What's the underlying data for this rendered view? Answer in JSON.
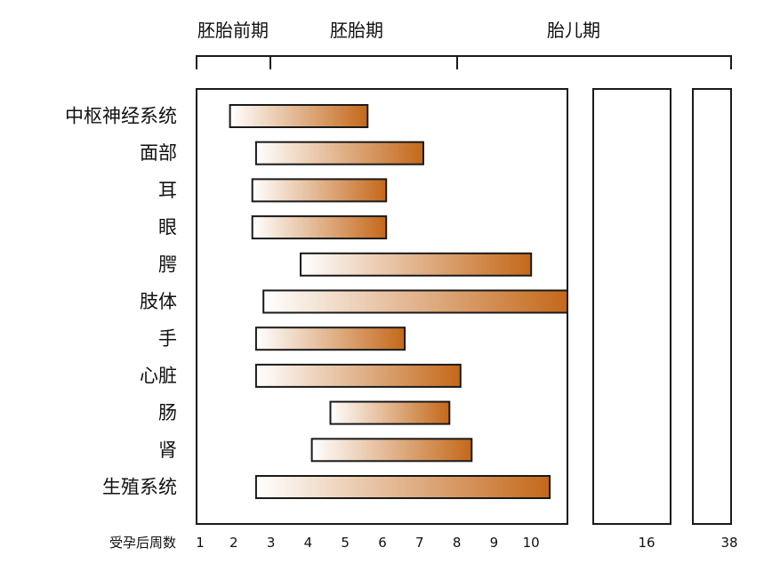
{
  "chart_data": {
    "type": "bar",
    "orientation": "horizontal",
    "xlabel": "受孕后周数",
    "x_ticks": [
      "1",
      "2",
      "3",
      "4",
      "5",
      "6",
      "7",
      "8",
      "9",
      "10",
      "16",
      "38"
    ],
    "phases": [
      {
        "label": "胚胎前期",
        "start": 1,
        "end": 3
      },
      {
        "label": "胚胎期",
        "start": 3,
        "end": 8
      },
      {
        "label": "胎儿期",
        "start": 8,
        "end": 38
      }
    ],
    "categories": [
      "中枢神经系统",
      "面部",
      "耳",
      "眼",
      "腭",
      "肢体",
      "手",
      "心脏",
      "肠",
      "肾",
      "生殖系统"
    ],
    "ranges": [
      [
        1.9,
        5.6
      ],
      [
        2.6,
        7.1
      ],
      [
        2.5,
        6.1
      ],
      [
        2.5,
        6.1
      ],
      [
        3.8,
        10.0
      ],
      [
        2.8,
        11.0
      ],
      [
        2.6,
        6.6
      ],
      [
        2.6,
        8.1
      ],
      [
        4.6,
        7.8
      ],
      [
        4.1,
        8.4
      ],
      [
        2.6,
        10.5
      ]
    ],
    "bar_gradient": [
      "#ffffff",
      "#c4681a"
    ],
    "bar_stroke": "#1a1a1a"
  }
}
